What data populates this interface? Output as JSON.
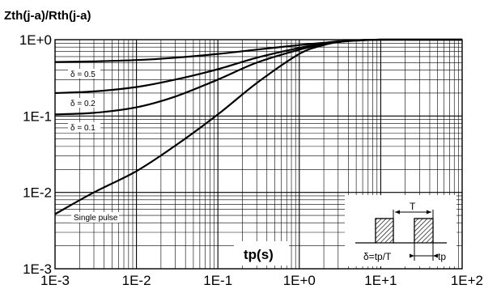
{
  "chart_data": {
    "type": "line",
    "title": "Zth(j-a)/Rth(j-a)",
    "xlabel": "tp(s)",
    "ylabel": "",
    "scale": {
      "x": "log",
      "y": "log"
    },
    "xlim": [
      0.001,
      100
    ],
    "ylim": [
      0.001,
      1
    ],
    "x_ticks": [
      "1E-3",
      "1E-2",
      "1E-1",
      "1E+0",
      "1E+1",
      "1E+2"
    ],
    "y_ticks": [
      "1E-3",
      "1E-2",
      "1E-1",
      "1E+0"
    ],
    "grid": true,
    "series": [
      {
        "name": "δ = 0.5",
        "x": [
          0.001,
          0.003,
          0.01,
          0.03,
          0.1,
          0.3,
          1,
          2,
          3,
          5,
          10,
          30,
          100
        ],
        "y": [
          0.51,
          0.52,
          0.54,
          0.58,
          0.65,
          0.74,
          0.85,
          0.91,
          0.95,
          0.98,
          1.0,
          1.0,
          1.0
        ]
      },
      {
        "name": "δ = 0.2",
        "x": [
          0.001,
          0.003,
          0.01,
          0.03,
          0.1,
          0.3,
          1,
          2,
          3,
          5,
          10,
          30,
          100
        ],
        "y": [
          0.2,
          0.21,
          0.24,
          0.3,
          0.41,
          0.58,
          0.78,
          0.89,
          0.94,
          0.98,
          1.0,
          1.0,
          1.0
        ]
      },
      {
        "name": "δ = 0.1",
        "x": [
          0.001,
          0.003,
          0.01,
          0.03,
          0.1,
          0.3,
          1,
          2,
          3,
          5,
          10,
          30,
          100
        ],
        "y": [
          0.105,
          0.11,
          0.13,
          0.18,
          0.3,
          0.5,
          0.74,
          0.87,
          0.93,
          0.97,
          1.0,
          1.0,
          1.0
        ]
      },
      {
        "name": "Single pulse",
        "x": [
          0.001,
          0.003,
          0.01,
          0.03,
          0.1,
          0.3,
          1,
          2,
          3,
          5,
          10,
          30,
          100
        ],
        "y": [
          0.0052,
          0.01,
          0.019,
          0.041,
          0.105,
          0.27,
          0.65,
          0.85,
          0.93,
          0.98,
          1.0,
          1.0,
          1.0
        ]
      }
    ],
    "inset": {
      "period_label": "T",
      "duty_label": "δ=tp/T",
      "pulse_label": "tp"
    }
  }
}
